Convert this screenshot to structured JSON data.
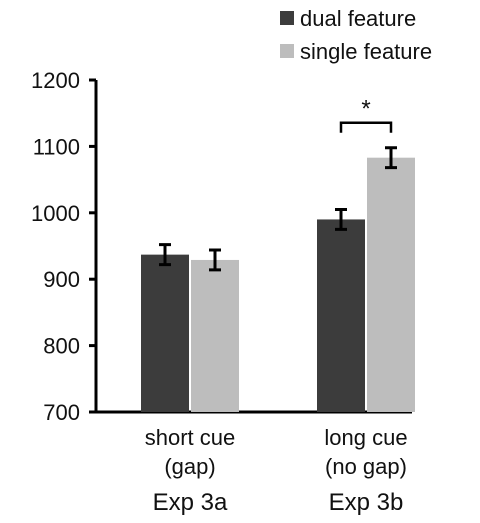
{
  "chart_data": {
    "type": "bar",
    "title": "",
    "xlabel": "",
    "ylabel": "",
    "ylim": [
      700,
      1200
    ],
    "yticks": [
      700,
      800,
      900,
      1000,
      1100,
      1200
    ],
    "categories": [
      {
        "label_line1": "short cue",
        "label_line2": "(gap)",
        "group": "Exp 3a"
      },
      {
        "label_line1": "long cue",
        "label_line2": "(no gap)",
        "group": "Exp 3b"
      }
    ],
    "series": [
      {
        "name": "dual feature",
        "color": "#3c3c3c",
        "values": [
          937,
          990
        ],
        "errors": [
          15,
          15
        ]
      },
      {
        "name": "single feature",
        "color": "#bdbdbd",
        "values": [
          929,
          1083
        ],
        "errors": [
          15,
          15
        ]
      }
    ],
    "legend": {
      "placement": "top-right"
    },
    "grid": false,
    "significance": [
      {
        "category_index": 1,
        "label": "*"
      }
    ]
  }
}
